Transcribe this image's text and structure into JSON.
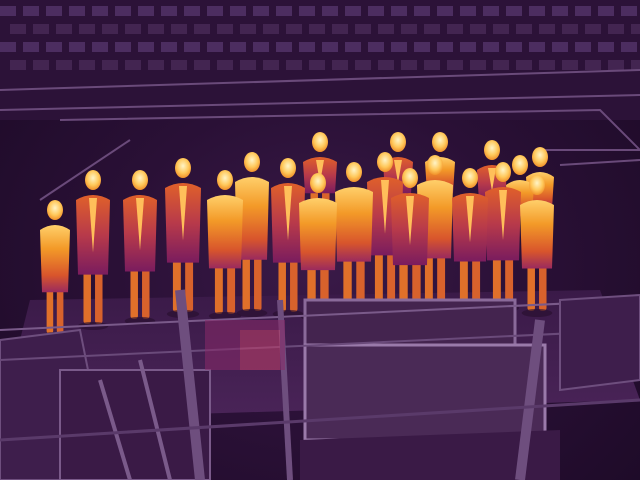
{
  "image": {
    "kind": "thermal-camera-photo",
    "palette": "inferno",
    "subject": "group-of-people",
    "people_count": 20
  },
  "colors": {
    "cold_dark": "#1c0a26",
    "cold": "#3a1a48",
    "structure": "#5a3a6a",
    "structure_light": "#7a5a8a",
    "warm_low": "#8a1e6e",
    "warm_mid": "#d2452e",
    "warm_high": "#f08a1e",
    "hot": "#ffd06a",
    "hottest": "#fff2c0"
  }
}
